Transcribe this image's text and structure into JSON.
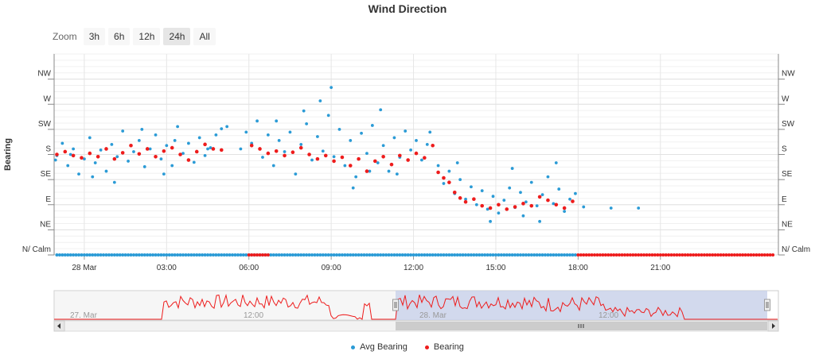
{
  "chart_data": {
    "type": "scatter",
    "title": "Wind Direction",
    "ylabel": "Bearing",
    "y_categories": [
      "N/ Calm",
      "NE",
      "E",
      "SE",
      "S",
      "SW",
      "W",
      "NW"
    ],
    "ylim": [
      0,
      360
    ],
    "x_ticks": [
      {
        "label": "28 Mar",
        "hour": 24
      },
      {
        "label": "03:00",
        "hour": 27
      },
      {
        "label": "06:00",
        "hour": 30
      },
      {
        "label": "09:00",
        "hour": 33
      },
      {
        "label": "12:00",
        "hour": 36
      },
      {
        "label": "15:00",
        "hour": 39
      },
      {
        "label": "18:00",
        "hour": 42
      },
      {
        "label": "21:00",
        "hour": 45
      }
    ],
    "xlim_hours": [
      22.9,
      49.3
    ],
    "colors": {
      "avg": "#2b9bd6",
      "bearing": "#ee1c1c",
      "navigator_fill": "#c7cfe9",
      "navigator_line": "#ee1c1c"
    },
    "series": [
      {
        "name": "Avg Bearing",
        "key": "avg",
        "points": [
          [
            23.0,
            178
          ],
          [
            23.2,
            200
          ],
          [
            23.4,
            160
          ],
          [
            23.6,
            190
          ],
          [
            23.8,
            145
          ],
          [
            24.0,
            172
          ],
          [
            24.2,
            210
          ],
          [
            24.4,
            165
          ],
          [
            24.6,
            188
          ],
          [
            24.8,
            150
          ],
          [
            25.0,
            198
          ],
          [
            25.2,
            176
          ],
          [
            25.4,
            222
          ],
          [
            25.6,
            168
          ],
          [
            25.8,
            185
          ],
          [
            26.0,
            205
          ],
          [
            26.2,
            158
          ],
          [
            26.4,
            190
          ],
          [
            26.6,
            215
          ],
          [
            26.8,
            172
          ],
          [
            27.0,
            196
          ],
          [
            27.2,
            160
          ],
          [
            27.4,
            230
          ],
          [
            27.6,
            182
          ],
          [
            27.8,
            200
          ],
          [
            28.0,
            166
          ],
          [
            28.2,
            210
          ],
          [
            28.4,
            178
          ],
          [
            28.6,
            192
          ],
          [
            28.8,
            215
          ],
          [
            29.0,
            226
          ],
          [
            29.2,
            230
          ],
          [
            29.7,
            190
          ],
          [
            29.9,
            220
          ],
          [
            30.1,
            200
          ],
          [
            30.3,
            240
          ],
          [
            30.5,
            175
          ],
          [
            30.7,
            215
          ],
          [
            30.9,
            160
          ],
          [
            31.1,
            205
          ],
          [
            31.3,
            185
          ],
          [
            31.5,
            220
          ],
          [
            31.7,
            145
          ],
          [
            31.9,
            198
          ],
          [
            32.1,
            235
          ],
          [
            32.3,
            170
          ],
          [
            32.5,
            212
          ],
          [
            32.7,
            186
          ],
          [
            32.9,
            250
          ],
          [
            33.1,
            176
          ],
          [
            33.3,
            225
          ],
          [
            33.5,
            160
          ],
          [
            33.7,
            205
          ],
          [
            33.9,
            140
          ],
          [
            34.1,
            218
          ],
          [
            34.3,
            182
          ],
          [
            34.5,
            232
          ],
          [
            34.7,
            165
          ],
          [
            34.9,
            196
          ],
          [
            35.1,
            150
          ],
          [
            35.3,
            210
          ],
          [
            35.5,
            175
          ],
          [
            35.7,
            222
          ],
          [
            35.9,
            188
          ],
          [
            36.1,
            205
          ],
          [
            36.3,
            170
          ],
          [
            36.5,
            198
          ],
          [
            36.9,
            160
          ],
          [
            37.1,
            128
          ],
          [
            37.3,
            150
          ],
          [
            37.5,
            110
          ],
          [
            37.7,
            135
          ],
          [
            37.9,
            100
          ],
          [
            38.1,
            122
          ],
          [
            38.3,
            90
          ],
          [
            38.5,
            115
          ],
          [
            38.7,
            82
          ],
          [
            38.9,
            105
          ],
          [
            39.1,
            75
          ],
          [
            39.3,
            98
          ],
          [
            39.5,
            120
          ],
          [
            39.7,
            85
          ],
          [
            39.9,
            112
          ],
          [
            40.1,
            95
          ],
          [
            40.3,
            130
          ],
          [
            40.5,
            88
          ],
          [
            40.7,
            108
          ],
          [
            40.9,
            140
          ],
          [
            41.1,
            92
          ],
          [
            41.3,
            118
          ],
          [
            41.5,
            78
          ],
          [
            41.7,
            100
          ],
          [
            42.2,
            86
          ],
          [
            43.2,
            84
          ],
          [
            44.2,
            84
          ],
          [
            23.5,
            180
          ],
          [
            24.3,
            140
          ],
          [
            25.1,
            130
          ],
          [
            26.1,
            225
          ],
          [
            26.9,
            145
          ],
          [
            27.3,
            205
          ],
          [
            28.5,
            190
          ],
          [
            31.0,
            240
          ],
          [
            32.0,
            258
          ],
          [
            32.6,
            276
          ],
          [
            33.0,
            300
          ],
          [
            33.8,
            120
          ],
          [
            34.4,
            150
          ],
          [
            34.8,
            260
          ],
          [
            35.4,
            145
          ],
          [
            36.6,
            220
          ],
          [
            37.6,
            165
          ],
          [
            38.8,
            60
          ],
          [
            39.6,
            155
          ],
          [
            40.6,
            60
          ],
          [
            41.2,
            165
          ],
          [
            22.95,
            170
          ],
          [
            41.9,
            110
          ],
          [
            40.0,
            70
          ]
        ]
      },
      {
        "name": "Bearing",
        "key": "bearing",
        "points": [
          [
            23.0,
            180
          ],
          [
            23.3,
            185
          ],
          [
            23.6,
            178
          ],
          [
            23.9,
            174
          ],
          [
            24.2,
            182
          ],
          [
            24.5,
            176
          ],
          [
            24.8,
            190
          ],
          [
            25.1,
            172
          ],
          [
            25.4,
            183
          ],
          [
            25.7,
            196
          ],
          [
            26.0,
            181
          ],
          [
            26.3,
            190
          ],
          [
            26.6,
            176
          ],
          [
            26.9,
            186
          ],
          [
            27.2,
            192
          ],
          [
            27.5,
            180
          ],
          [
            27.8,
            170
          ],
          [
            28.1,
            185
          ],
          [
            28.4,
            198
          ],
          [
            28.7,
            190
          ],
          [
            29.0,
            188
          ],
          [
            30.1,
            196
          ],
          [
            30.4,
            190
          ],
          [
            30.7,
            182
          ],
          [
            31.0,
            186
          ],
          [
            31.3,
            178
          ],
          [
            31.6,
            184
          ],
          [
            31.9,
            192
          ],
          [
            32.2,
            180
          ],
          [
            32.5,
            172
          ],
          [
            32.8,
            178
          ],
          [
            33.1,
            168
          ],
          [
            33.4,
            175
          ],
          [
            33.7,
            160
          ],
          [
            34.0,
            172
          ],
          [
            34.3,
            150
          ],
          [
            34.6,
            168
          ],
          [
            34.9,
            176
          ],
          [
            35.2,
            162
          ],
          [
            35.5,
            178
          ],
          [
            35.8,
            170
          ],
          [
            36.1,
            182
          ],
          [
            36.4,
            174
          ],
          [
            36.7,
            196
          ],
          [
            36.9,
            148
          ],
          [
            37.1,
            138
          ],
          [
            37.3,
            130
          ],
          [
            37.5,
            112
          ],
          [
            37.7,
            102
          ],
          [
            37.9,
            95
          ],
          [
            38.2,
            100
          ],
          [
            38.5,
            88
          ],
          [
            38.8,
            84
          ],
          [
            39.1,
            90
          ],
          [
            39.4,
            82
          ],
          [
            39.7,
            86
          ],
          [
            40.0,
            92
          ],
          [
            40.3,
            88
          ],
          [
            40.6,
            104
          ],
          [
            40.9,
            98
          ],
          [
            41.2,
            90
          ],
          [
            41.5,
            84
          ],
          [
            41.8,
            96
          ]
        ]
      }
    ]
  },
  "zoom": {
    "label": "Zoom",
    "buttons": [
      "3h",
      "6h",
      "12h",
      "24h",
      "All"
    ],
    "active": "24h"
  },
  "navigator": {
    "labels": [
      {
        "text": "27. Mar"
      },
      {
        "text": "12:00"
      },
      {
        "text": "28. Mar"
      },
      {
        "text": "12:00"
      }
    ]
  },
  "legend": [
    {
      "name": "Avg Bearing",
      "color": "#2b9bd6"
    },
    {
      "name": "Bearing",
      "color": "#ee1c1c"
    }
  ]
}
